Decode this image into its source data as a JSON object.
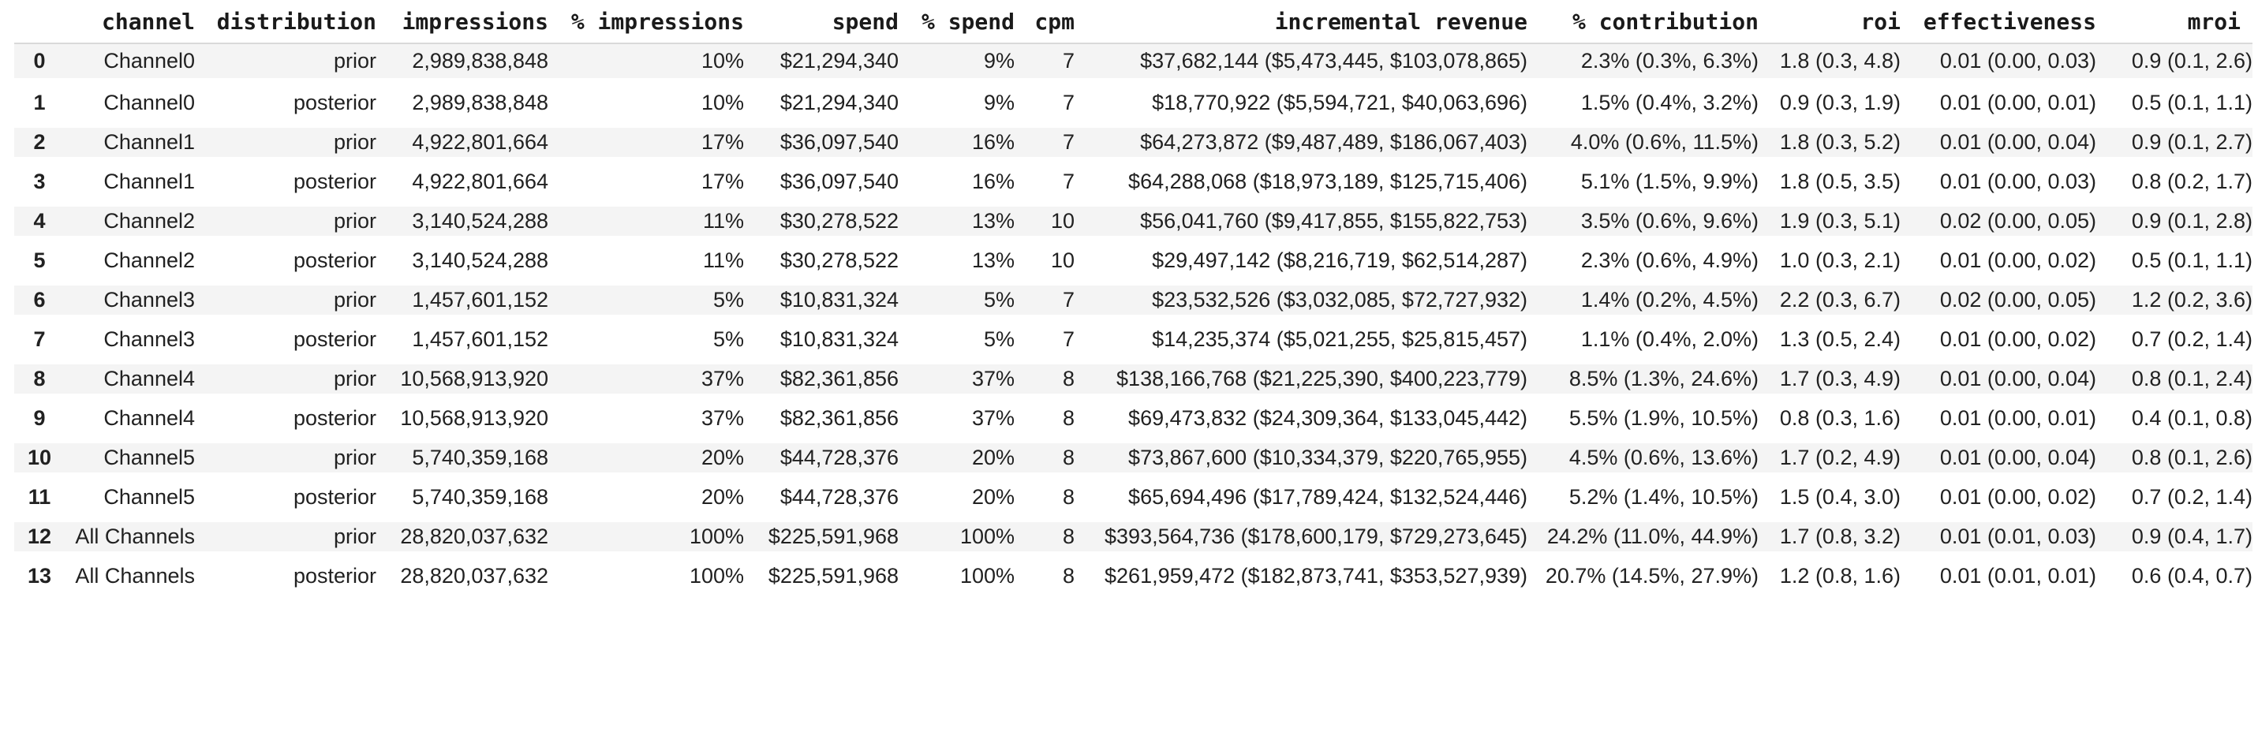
{
  "table": {
    "columns": [
      "",
      "channel",
      "distribution",
      "impressions",
      "% impressions",
      "spend",
      "% spend",
      "cpm",
      "incremental revenue",
      "% contribution",
      "roi",
      "effectiveness",
      "mroi"
    ],
    "rows": [
      {
        "idx": "0",
        "channel": "Channel0",
        "distribution": "prior",
        "impressions": "2,989,838,848",
        "pct_impressions": "10%",
        "spend": "$21,294,340",
        "pct_spend": "9%",
        "cpm": "7",
        "incremental_revenue": "$37,682,144 ($5,473,445, $103,078,865)",
        "pct_contribution": "2.3% (0.3%, 6.3%)",
        "roi": "1.8 (0.3, 4.8)",
        "effectiveness": "0.01 (0.00, 0.03)",
        "mroi": "0.9 (0.1, 2.6)"
      },
      {
        "idx": "1",
        "channel": "Channel0",
        "distribution": "posterior",
        "impressions": "2,989,838,848",
        "pct_impressions": "10%",
        "spend": "$21,294,340",
        "pct_spend": "9%",
        "cpm": "7",
        "incremental_revenue": "$18,770,922 ($5,594,721, $40,063,696)",
        "pct_contribution": "1.5% (0.4%, 3.2%)",
        "roi": "0.9 (0.3, 1.9)",
        "effectiveness": "0.01 (0.00, 0.01)",
        "mroi": "0.5 (0.1, 1.1)"
      },
      {
        "idx": "2",
        "channel": "Channel1",
        "distribution": "prior",
        "impressions": "4,922,801,664",
        "pct_impressions": "17%",
        "spend": "$36,097,540",
        "pct_spend": "16%",
        "cpm": "7",
        "incremental_revenue": "$64,273,872 ($9,487,489, $186,067,403)",
        "pct_contribution": "4.0% (0.6%, 11.5%)",
        "roi": "1.8 (0.3, 5.2)",
        "effectiveness": "0.01 (0.00, 0.04)",
        "mroi": "0.9 (0.1, 2.7)"
      },
      {
        "idx": "3",
        "channel": "Channel1",
        "distribution": "posterior",
        "impressions": "4,922,801,664",
        "pct_impressions": "17%",
        "spend": "$36,097,540",
        "pct_spend": "16%",
        "cpm": "7",
        "incremental_revenue": "$64,288,068 ($18,973,189, $125,715,406)",
        "pct_contribution": "5.1% (1.5%, 9.9%)",
        "roi": "1.8 (0.5, 3.5)",
        "effectiveness": "0.01 (0.00, 0.03)",
        "mroi": "0.8 (0.2, 1.7)"
      },
      {
        "idx": "4",
        "channel": "Channel2",
        "distribution": "prior",
        "impressions": "3,140,524,288",
        "pct_impressions": "11%",
        "spend": "$30,278,522",
        "pct_spend": "13%",
        "cpm": "10",
        "incremental_revenue": "$56,041,760 ($9,417,855, $155,822,753)",
        "pct_contribution": "3.5% (0.6%, 9.6%)",
        "roi": "1.9 (0.3, 5.1)",
        "effectiveness": "0.02 (0.00, 0.05)",
        "mroi": "0.9 (0.1, 2.8)"
      },
      {
        "idx": "5",
        "channel": "Channel2",
        "distribution": "posterior",
        "impressions": "3,140,524,288",
        "pct_impressions": "11%",
        "spend": "$30,278,522",
        "pct_spend": "13%",
        "cpm": "10",
        "incremental_revenue": "$29,497,142 ($8,216,719, $62,514,287)",
        "pct_contribution": "2.3% (0.6%, 4.9%)",
        "roi": "1.0 (0.3, 2.1)",
        "effectiveness": "0.01 (0.00, 0.02)",
        "mroi": "0.5 (0.1, 1.1)"
      },
      {
        "idx": "6",
        "channel": "Channel3",
        "distribution": "prior",
        "impressions": "1,457,601,152",
        "pct_impressions": "5%",
        "spend": "$10,831,324",
        "pct_spend": "5%",
        "cpm": "7",
        "incremental_revenue": "$23,532,526 ($3,032,085, $72,727,932)",
        "pct_contribution": "1.4% (0.2%, 4.5%)",
        "roi": "2.2 (0.3, 6.7)",
        "effectiveness": "0.02 (0.00, 0.05)",
        "mroi": "1.2 (0.2, 3.6)"
      },
      {
        "idx": "7",
        "channel": "Channel3",
        "distribution": "posterior",
        "impressions": "1,457,601,152",
        "pct_impressions": "5%",
        "spend": "$10,831,324",
        "pct_spend": "5%",
        "cpm": "7",
        "incremental_revenue": "$14,235,374 ($5,021,255, $25,815,457)",
        "pct_contribution": "1.1% (0.4%, 2.0%)",
        "roi": "1.3 (0.5, 2.4)",
        "effectiveness": "0.01 (0.00, 0.02)",
        "mroi": "0.7 (0.2, 1.4)"
      },
      {
        "idx": "8",
        "channel": "Channel4",
        "distribution": "prior",
        "impressions": "10,568,913,920",
        "pct_impressions": "37%",
        "spend": "$82,361,856",
        "pct_spend": "37%",
        "cpm": "8",
        "incremental_revenue": "$138,166,768 ($21,225,390, $400,223,779)",
        "pct_contribution": "8.5% (1.3%, 24.6%)",
        "roi": "1.7 (0.3, 4.9)",
        "effectiveness": "0.01 (0.00, 0.04)",
        "mroi": "0.8 (0.1, 2.4)"
      },
      {
        "idx": "9",
        "channel": "Channel4",
        "distribution": "posterior",
        "impressions": "10,568,913,920",
        "pct_impressions": "37%",
        "spend": "$82,361,856",
        "pct_spend": "37%",
        "cpm": "8",
        "incremental_revenue": "$69,473,832 ($24,309,364, $133,045,442)",
        "pct_contribution": "5.5% (1.9%, 10.5%)",
        "roi": "0.8 (0.3, 1.6)",
        "effectiveness": "0.01 (0.00, 0.01)",
        "mroi": "0.4 (0.1, 0.8)"
      },
      {
        "idx": "10",
        "channel": "Channel5",
        "distribution": "prior",
        "impressions": "5,740,359,168",
        "pct_impressions": "20%",
        "spend": "$44,728,376",
        "pct_spend": "20%",
        "cpm": "8",
        "incremental_revenue": "$73,867,600 ($10,334,379, $220,765,955)",
        "pct_contribution": "4.5% (0.6%, 13.6%)",
        "roi": "1.7 (0.2, 4.9)",
        "effectiveness": "0.01 (0.00, 0.04)",
        "mroi": "0.8 (0.1, 2.6)"
      },
      {
        "idx": "11",
        "channel": "Channel5",
        "distribution": "posterior",
        "impressions": "5,740,359,168",
        "pct_impressions": "20%",
        "spend": "$44,728,376",
        "pct_spend": "20%",
        "cpm": "8",
        "incremental_revenue": "$65,694,496 ($17,789,424, $132,524,446)",
        "pct_contribution": "5.2% (1.4%, 10.5%)",
        "roi": "1.5 (0.4, 3.0)",
        "effectiveness": "0.01 (0.00, 0.02)",
        "mroi": "0.7 (0.2, 1.4)"
      },
      {
        "idx": "12",
        "channel": "All Channels",
        "distribution": "prior",
        "impressions": "28,820,037,632",
        "pct_impressions": "100%",
        "spend": "$225,591,968",
        "pct_spend": "100%",
        "cpm": "8",
        "incremental_revenue": "$393,564,736 ($178,600,179, $729,273,645)",
        "pct_contribution": "24.2% (11.0%, 44.9%)",
        "roi": "1.7 (0.8, 3.2)",
        "effectiveness": "0.01 (0.01, 0.03)",
        "mroi": "0.9 (0.4, 1.7)"
      },
      {
        "idx": "13",
        "channel": "All Channels",
        "distribution": "posterior",
        "impressions": "28,820,037,632",
        "pct_impressions": "100%",
        "spend": "$225,591,968",
        "pct_spend": "100%",
        "cpm": "8",
        "incremental_revenue": "$261,959,472 ($182,873,741, $353,527,939)",
        "pct_contribution": "20.7% (14.5%, 27.9%)",
        "roi": "1.2 (0.8, 1.6)",
        "effectiveness": "0.01 (0.01, 0.01)",
        "mroi": "0.6 (0.4, 0.7)"
      }
    ]
  },
  "colors": {
    "stripe": "#f4f4f4",
    "header_border": "#d9d9d9",
    "text": "#212121",
    "header_text": "#1a1a1a"
  }
}
